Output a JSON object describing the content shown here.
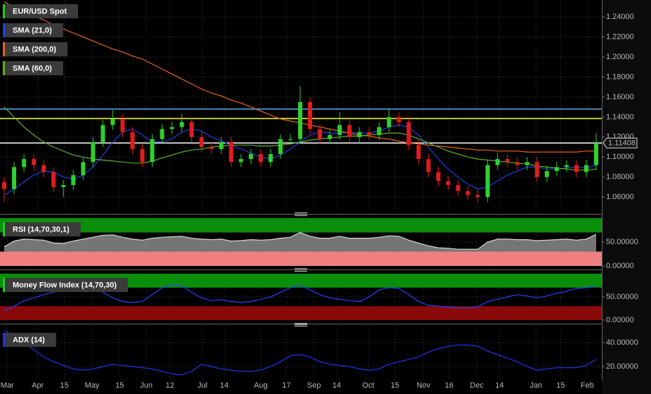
{
  "chart_data": [
    {
      "type": "candlestick",
      "name": "EUR/USD Spot",
      "legend_color": "#22cc22",
      "up_color": "#2ed12e",
      "down_color": "#e01c1c",
      "open": [
        1.075,
        1.068,
        1.09,
        1.098,
        1.092,
        1.085,
        1.07,
        1.072,
        1.082,
        1.095,
        1.115,
        1.132,
        1.138,
        1.125,
        1.108,
        1.095,
        1.118,
        1.128,
        1.13,
        1.135,
        1.12,
        1.11,
        1.108,
        1.115,
        1.095,
        1.098,
        1.103,
        1.095,
        1.103,
        1.118,
        1.118,
        1.155,
        1.128,
        1.118,
        1.122,
        1.132,
        1.12,
        1.125,
        1.122,
        1.13,
        1.14,
        1.135,
        1.112,
        1.098,
        1.085,
        1.076,
        1.072,
        1.066,
        1.062,
        1.06,
        1.092,
        1.098,
        1.095,
        1.092,
        1.095,
        1.08,
        1.086,
        1.09,
        1.092,
        1.085,
        1.092
      ],
      "high": [
        1.08,
        1.095,
        1.103,
        1.103,
        1.097,
        1.09,
        1.077,
        1.087,
        1.1,
        1.12,
        1.137,
        1.147,
        1.143,
        1.13,
        1.113,
        1.123,
        1.133,
        1.135,
        1.143,
        1.14,
        1.125,
        1.115,
        1.12,
        1.12,
        1.103,
        1.108,
        1.108,
        1.108,
        1.123,
        1.123,
        1.171,
        1.16,
        1.133,
        1.127,
        1.145,
        1.137,
        1.13,
        1.13,
        1.135,
        1.149,
        1.145,
        1.14,
        1.117,
        1.103,
        1.09,
        1.081,
        1.077,
        1.071,
        1.067,
        1.097,
        1.104,
        1.103,
        1.1,
        1.1,
        1.1,
        1.091,
        1.095,
        1.097,
        1.097,
        1.097,
        1.124
      ],
      "low": [
        1.055,
        1.063,
        1.085,
        1.087,
        1.08,
        1.065,
        1.06,
        1.067,
        1.077,
        1.09,
        1.11,
        1.127,
        1.12,
        1.103,
        1.09,
        1.09,
        1.113,
        1.123,
        1.125,
        1.115,
        1.105,
        1.103,
        1.103,
        1.09,
        1.09,
        1.093,
        1.09,
        1.09,
        1.098,
        1.113,
        1.113,
        1.123,
        1.113,
        1.113,
        1.117,
        1.115,
        1.115,
        1.117,
        1.117,
        1.125,
        1.13,
        1.107,
        1.093,
        1.08,
        1.071,
        1.067,
        1.061,
        1.057,
        1.055,
        1.055,
        1.087,
        1.09,
        1.087,
        1.087,
        1.075,
        1.075,
        1.081,
        1.085,
        1.08,
        1.08,
        1.087
      ],
      "close": [
        1.068,
        1.09,
        1.098,
        1.092,
        1.085,
        1.07,
        1.072,
        1.082,
        1.095,
        1.115,
        1.132,
        1.138,
        1.125,
        1.108,
        1.095,
        1.118,
        1.128,
        1.13,
        1.135,
        1.12,
        1.11,
        1.108,
        1.115,
        1.095,
        1.098,
        1.103,
        1.095,
        1.103,
        1.118,
        1.118,
        1.155,
        1.128,
        1.118,
        1.122,
        1.132,
        1.12,
        1.125,
        1.122,
        1.13,
        1.14,
        1.135,
        1.112,
        1.098,
        1.085,
        1.076,
        1.072,
        1.066,
        1.062,
        1.06,
        1.092,
        1.098,
        1.095,
        1.092,
        1.095,
        1.08,
        1.086,
        1.09,
        1.092,
        1.085,
        1.092,
        1.114
      ],
      "overlays": [
        {
          "name": "SMA (21,0)",
          "color": "#1f3fe0",
          "values": [
            1.062,
            1.068,
            1.075,
            1.082,
            1.086,
            1.085,
            1.08,
            1.078,
            1.082,
            1.09,
            1.102,
            1.115,
            1.125,
            1.128,
            1.122,
            1.115,
            1.115,
            1.118,
            1.125,
            1.128,
            1.126,
            1.12,
            1.116,
            1.112,
            1.108,
            1.104,
            1.1,
            1.098,
            1.102,
            1.108,
            1.115,
            1.122,
            1.125,
            1.124,
            1.124,
            1.125,
            1.124,
            1.124,
            1.126,
            1.13,
            1.132,
            1.13,
            1.122,
            1.11,
            1.098,
            1.088,
            1.08,
            1.073,
            1.068,
            1.07,
            1.076,
            1.082,
            1.086,
            1.09,
            1.09,
            1.088,
            1.088,
            1.089,
            1.09,
            1.089,
            1.092
          ]
        },
        {
          "name": "SMA (200,0)",
          "color": "#e8661a",
          "values": [
            1.255,
            1.25,
            1.246,
            1.241,
            1.237,
            1.232,
            1.228,
            1.224,
            1.22,
            1.216,
            1.212,
            1.208,
            1.205,
            1.201,
            1.198,
            1.193,
            1.188,
            1.183,
            1.178,
            1.173,
            1.168,
            1.164,
            1.161,
            1.157,
            1.154,
            1.15,
            1.146,
            1.142,
            1.138,
            1.136,
            1.134,
            1.132,
            1.13,
            1.128,
            1.126,
            1.124,
            1.122,
            1.121,
            1.119,
            1.118,
            1.116,
            1.114,
            1.113,
            1.112,
            1.111,
            1.11,
            1.109,
            1.108,
            1.107,
            1.107,
            1.106,
            1.106,
            1.106,
            1.105,
            1.105,
            1.105,
            1.105,
            1.105,
            1.105,
            1.106,
            1.106
          ]
        },
        {
          "name": "SMA (60,0)",
          "color": "#5fb02a",
          "values": [
            1.15,
            1.14,
            1.13,
            1.122,
            1.115,
            1.11,
            1.106,
            1.102,
            1.1,
            1.098,
            1.097,
            1.096,
            1.095,
            1.094,
            1.094,
            1.096,
            1.099,
            1.102,
            1.105,
            1.107,
            1.108,
            1.11,
            1.111,
            1.112,
            1.112,
            1.112,
            1.111,
            1.111,
            1.112,
            1.113,
            1.115,
            1.117,
            1.118,
            1.119,
            1.12,
            1.121,
            1.121,
            1.122,
            1.123,
            1.124,
            1.124,
            1.122,
            1.118,
            1.114,
            1.11,
            1.106,
            1.103,
            1.1,
            1.098,
            1.097,
            1.096,
            1.095,
            1.094,
            1.093,
            1.091,
            1.09,
            1.089,
            1.088,
            1.087,
            1.087,
            1.088
          ]
        }
      ],
      "hlines": [
        {
          "value": 1.148,
          "color": "#5aaee8"
        },
        {
          "value": 1.1385,
          "color": "#ffff30"
        },
        {
          "value": 1.11408,
          "color": "#ffffff"
        }
      ],
      "xlim": [
        -0.43,
        60.57
      ],
      "ylim": [
        1.046,
        1.257
      ],
      "yticks": [
        {
          "value": 1.06,
          "label": "1.06000"
        },
        {
          "value": 1.08,
          "label": "1.08000"
        },
        {
          "value": 1.1,
          "label": "1.10000"
        },
        {
          "value": 1.12,
          "label": "1.12000"
        },
        {
          "value": 1.14,
          "label": "1.14000"
        },
        {
          "value": 1.16,
          "label": "1.16000"
        },
        {
          "value": 1.18,
          "label": "1.18000"
        },
        {
          "value": 1.2,
          "label": "1.20000"
        },
        {
          "value": 1.22,
          "label": "1.22000"
        },
        {
          "value": 1.24,
          "label": "1.24000"
        }
      ],
      "xticks": [
        {
          "value": 0.3,
          "label": "Mar"
        },
        {
          "value": 3.4,
          "label": "Apr"
        },
        {
          "value": 6.1,
          "label": "15"
        },
        {
          "value": 8.9,
          "label": "May"
        },
        {
          "value": 11.7,
          "label": "15"
        },
        {
          "value": 14.4,
          "label": "Jun"
        },
        {
          "value": 16.8,
          "label": "12"
        },
        {
          "value": 20.1,
          "label": "Jul"
        },
        {
          "value": 22.3,
          "label": "14"
        },
        {
          "value": 26,
          "label": "Aug"
        },
        {
          "value": 28.6,
          "label": "17"
        },
        {
          "value": 31.4,
          "label": "Sep"
        },
        {
          "value": 33.7,
          "label": "14"
        },
        {
          "value": 36.9,
          "label": "Oct"
        },
        {
          "value": 39.6,
          "label": "15"
        },
        {
          "value": 42.5,
          "label": "Nov"
        },
        {
          "value": 45.1,
          "label": "16"
        },
        {
          "value": 47.9,
          "label": "Dec"
        },
        {
          "value": 50.2,
          "label": "14"
        },
        {
          "value": 53.9,
          "label": "Jan"
        },
        {
          "value": 56.4,
          "label": "15"
        },
        {
          "value": 59.1,
          "label": "Feb"
        }
      ],
      "grid": true
    },
    {
      "type": "area",
      "name": "RSI (14,70,30,1)",
      "legend_color": "#22cc22",
      "color": "#d8d8d8",
      "values": [
        40,
        52,
        56,
        55,
        54,
        48,
        47,
        52,
        56,
        60,
        64,
        65,
        60,
        56,
        54,
        58,
        60,
        61,
        62,
        58,
        56,
        55,
        56,
        52,
        53,
        55,
        54,
        55,
        58,
        60,
        70,
        62,
        58,
        58,
        62,
        58,
        58,
        58,
        60,
        63,
        62,
        54,
        48,
        42,
        38,
        37,
        35,
        35,
        35,
        50,
        56,
        56,
        55,
        55,
        53,
        54,
        55,
        56,
        54,
        56,
        66
      ],
      "bands": [
        {
          "from": 70,
          "to": 100,
          "color": "#0b8f0b"
        },
        {
          "from": 0,
          "to": 30,
          "color": "#ee7f7f"
        }
      ],
      "ylim": [
        0,
        100
      ],
      "yticks": [
        {
          "value": 0,
          "label": "0.00000"
        },
        {
          "value": 50,
          "label": "50.00000"
        }
      ],
      "grid": true
    },
    {
      "type": "line",
      "name": "Money Flow Index (14,70,30)",
      "legend_color": "#22cc22",
      "color": "#2244ff",
      "values": [
        20,
        30,
        42,
        48,
        55,
        60,
        70,
        75,
        76,
        72,
        60,
        48,
        40,
        38,
        40,
        55,
        70,
        76,
        74,
        60,
        48,
        42,
        44,
        40,
        38,
        40,
        45,
        50,
        60,
        70,
        75,
        65,
        55,
        48,
        45,
        42,
        40,
        50,
        65,
        70,
        68,
        55,
        40,
        32,
        30,
        28,
        26,
        26,
        28,
        40,
        45,
        50,
        55,
        52,
        48,
        52,
        58,
        62,
        68,
        70,
        72
      ],
      "bands": [
        {
          "from": 70,
          "to": 100,
          "color": "#0b8f0b"
        },
        {
          "from": 0,
          "to": 30,
          "color": "#8a0a0a"
        }
      ],
      "ylim": [
        0,
        100
      ],
      "yticks": [
        {
          "value": 0,
          "label": "0.00000"
        },
        {
          "value": 50,
          "label": "50.00000"
        }
      ],
      "grid": true
    },
    {
      "type": "line",
      "name": "ADX (14)",
      "legend_color": "#2233dd",
      "color": "#2233ee",
      "values": [
        50,
        46,
        40,
        34,
        28,
        24,
        21,
        18,
        17,
        18,
        20,
        22,
        21,
        20,
        19,
        18,
        16,
        14,
        13,
        16,
        22,
        20,
        18,
        17,
        16,
        16,
        17,
        20,
        24,
        29,
        30,
        28,
        24,
        22,
        21,
        20,
        18,
        17,
        18,
        22,
        24,
        26,
        28,
        32,
        35,
        37,
        38,
        38,
        37,
        33,
        30,
        27,
        24,
        20,
        17,
        18,
        19,
        19,
        19,
        21,
        26
      ],
      "ylim": [
        8.8,
        54.7
      ],
      "yticks": [
        {
          "value": 20,
          "label": "20.00000"
        },
        {
          "value": 40,
          "label": "40.00000"
        }
      ],
      "grid": true
    }
  ]
}
